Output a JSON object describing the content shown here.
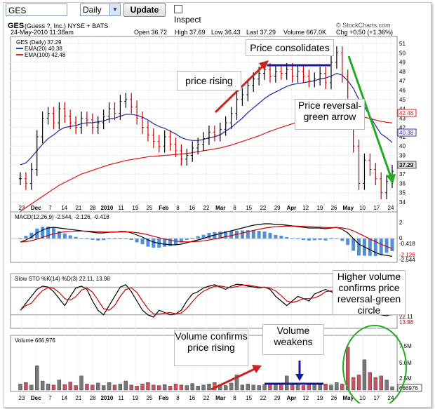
{
  "toolbar": {
    "symbol": "GES",
    "period": "Daily",
    "update_label": "Update",
    "inspect_label": "Inspect"
  },
  "header": {
    "symbol": "GES",
    "company": "(Guess ?, Inc.) NYSE + BATS",
    "datetime": "24-May-2010 11:38am",
    "source": "© StockCharts.com",
    "open": "Open 36.72",
    "high": "High 37.69",
    "low": "Low 36.43",
    "last": "Last 37.29",
    "volume": "Volume 667.0K",
    "chg": "Chg +0.50 (+1.36%)",
    "chg_arrow": "▲"
  },
  "legend": {
    "price": "GES (Daily) 37.29",
    "ema20": "EMA(20) 40.38",
    "ema100": "EMA(100) 42.48"
  },
  "price_axis": [
    "51",
    "50",
    "49",
    "48",
    "47",
    "46",
    "45",
    "44",
    "43",
    "42",
    "41",
    "40",
    "39",
    "38",
    "37",
    "36",
    "35",
    "34"
  ],
  "price_tags": {
    "ema100": "42.48",
    "ema20": "40.38",
    "last": "37.29"
  },
  "x_axis": [
    "23",
    "Dec",
    "7",
    "14",
    "21",
    "28",
    "2010",
    "11",
    "19",
    "25",
    "Feb",
    "8",
    "16",
    "22",
    "Mar",
    "8",
    "15",
    "22",
    "29",
    "Apr",
    "12",
    "19",
    "26",
    "May",
    "10",
    "17",
    "24"
  ],
  "macd": {
    "label": "MACD(12,26,9) -2.544, -2.126, -0.418",
    "ticks": [
      "2",
      "0",
      "-2"
    ],
    "tags": [
      "-0.418",
      "-2.126",
      "-2.544"
    ]
  },
  "sto": {
    "label": "Slow STO %K(14) %D(3) 22.11, 13.98",
    "tags": [
      "22.11",
      "13.98"
    ]
  },
  "volume": {
    "label": "Volume 666,976",
    "ticks": [
      "7.5M",
      "5.0M",
      "2.5M"
    ],
    "tag": "666976"
  },
  "annotations": {
    "consolidates": "Price consolidates",
    "rising": "price rising",
    "reversal": "Price reversal-green arrow",
    "higher_volume": "Higher volume confirms price reversal-green circle",
    "vol_rising": "Volume confirms price rising",
    "vol_weakens": "Volume weakens"
  },
  "colors": {
    "up": "#000000",
    "down": "#cc0000",
    "ema20": "#3333aa",
    "ema100": "#dd2222",
    "arrow_red": "#cc2222",
    "arrow_green": "#22aa22",
    "arrow_blue": "#1a1a99",
    "hist": "#4f8fd8",
    "vol_up": "#777777",
    "vol_down": "#cc5060"
  },
  "series": {
    "close": [
      36.5,
      36,
      37.5,
      41,
      43,
      43.5,
      42.5,
      44,
      43.2,
      42.5,
      42,
      43,
      42.8,
      42,
      42.5,
      43.2,
      44,
      43.5,
      44.8,
      45,
      44.2,
      43,
      42,
      41.2,
      40.5,
      40,
      41,
      40.2,
      39.5,
      38.6,
      39,
      39.8,
      40.2,
      40.8,
      41.5,
      41.2,
      41.8,
      42.5,
      43.5,
      45,
      45.5,
      46.5,
      47.2,
      47.8,
      48.2,
      47.5,
      48,
      47.8,
      48.2,
      47.5,
      48,
      47.5,
      47,
      47.2,
      47.8,
      46.8,
      49,
      50,
      47.5,
      44,
      40,
      36,
      38.5,
      37.5,
      36.5,
      35,
      36.2,
      37.29
    ],
    "ema20": [
      38,
      38.2,
      38.8,
      39.5,
      40.2,
      40.8,
      41.2,
      41.7,
      42,
      42.1,
      42.2,
      42.4,
      42.5,
      42.5,
      42.6,
      42.7,
      42.9,
      43,
      43.2,
      43.4,
      43.4,
      43.3,
      43.1,
      42.8,
      42.4,
      42.1,
      41.9,
      41.6,
      41.3,
      40.9,
      40.7,
      40.6,
      40.6,
      40.7,
      40.9,
      41,
      41.2,
      41.6,
      42,
      42.5,
      43,
      43.6,
      44.1,
      44.6,
      45.1,
      45.5,
      45.8,
      46.1,
      46.4,
      46.6,
      46.7,
      46.8,
      46.9,
      47,
      47.2,
      47.3,
      47.5,
      47.8,
      47.6,
      47,
      46.2,
      45,
      44.2,
      43.2,
      42.2,
      41.3,
      40.9,
      40.38
    ],
    "ema100": [
      33,
      33.4,
      33.8,
      34.2,
      34.6,
      35,
      35.4,
      35.8,
      36.1,
      36.4,
      36.7,
      37,
      37.2,
      37.4,
      37.6,
      37.8,
      38,
      38.15,
      38.3,
      38.45,
      38.55,
      38.65,
      38.75,
      38.85,
      38.9,
      38.95,
      39,
      39.05,
      39.1,
      39.15,
      39.2,
      39.3,
      39.4,
      39.5,
      39.6,
      39.7,
      39.8,
      39.95,
      40.1,
      40.3,
      40.5,
      40.7,
      40.9,
      41.1,
      41.35,
      41.6,
      41.8,
      42,
      42.2,
      42.4,
      42.55,
      42.7,
      42.85,
      43,
      43.1,
      43.2,
      43.35,
      43.5,
      43.6,
      43.6,
      43.5,
      43.3,
      43.1,
      42.95,
      42.8,
      42.65,
      42.55,
      42.48
    ],
    "volume": [
      1.2,
      1.5,
      1.0,
      4.8,
      1.8,
      1.2,
      1.0,
      2.0,
      1.1,
      1.6,
      0.9,
      2.8,
      1.2,
      1.0,
      1.4,
      0.9,
      1.5,
      1.0,
      1.2,
      1.8,
      1.0,
      0.8,
      1.2,
      1.5,
      1.0,
      0.9,
      1.1,
      0.8,
      1.2,
      1.0,
      0.9,
      1.3,
      0.8,
      1.0,
      1.2,
      1.5,
      1.1,
      0.9,
      1.4,
      3.0,
      1.0,
      1.2,
      1.0,
      0.9,
      1.1,
      1.3,
      1.0,
      1.2,
      2.8,
      1.0,
      1.1,
      0.9,
      1.0,
      1.3,
      1.0,
      1.2,
      1.0,
      1.5,
      1.2,
      8.5,
      2.5,
      3.0,
      6.0,
      3.5,
      2.5,
      2.8,
      2.0,
      0.67
    ],
    "stoK": [
      30,
      45,
      60,
      75,
      82,
      80,
      70,
      55,
      40,
      60,
      78,
      82,
      75,
      50,
      30,
      20,
      40,
      60,
      80,
      85,
      70,
      50,
      30,
      20,
      15,
      30,
      25,
      20,
      22,
      30,
      50,
      65,
      70,
      78,
      82,
      85,
      80,
      75,
      82,
      86,
      85,
      82,
      80,
      78,
      80,
      75,
      60,
      50,
      40,
      50,
      60,
      55,
      50,
      65,
      70,
      75,
      70,
      65,
      55,
      40,
      30,
      25,
      30,
      35,
      25,
      20,
      18,
      22
    ],
    "macd": [
      -0.5,
      -0.2,
      0.2,
      0.8,
      1.2,
      1.5,
      1.6,
      1.5,
      1.4,
      1.3,
      1.2,
      1.1,
      1.0,
      0.9,
      0.8,
      0.8,
      0.9,
      0.9,
      1.0,
      1.0,
      0.8,
      0.5,
      0.2,
      -0.2,
      -0.5,
      -0.7,
      -0.8,
      -0.9,
      -0.9,
      -0.8,
      -0.6,
      -0.4,
      -0.2,
      0.0,
      0.3,
      0.5,
      0.7,
      0.9,
      1.1,
      1.3,
      1.5,
      1.7,
      1.9,
      2.0,
      2.1,
      2.1,
      2.0,
      2.0,
      1.9,
      1.8,
      1.7,
      1.6,
      1.5,
      1.5,
      1.5,
      1.4,
      1.5,
      1.6,
      1.3,
      0.8,
      0.0,
      -0.8,
      -1.2,
      -1.6,
      -2.0,
      -2.3,
      -2.4,
      -2.544
    ]
  }
}
